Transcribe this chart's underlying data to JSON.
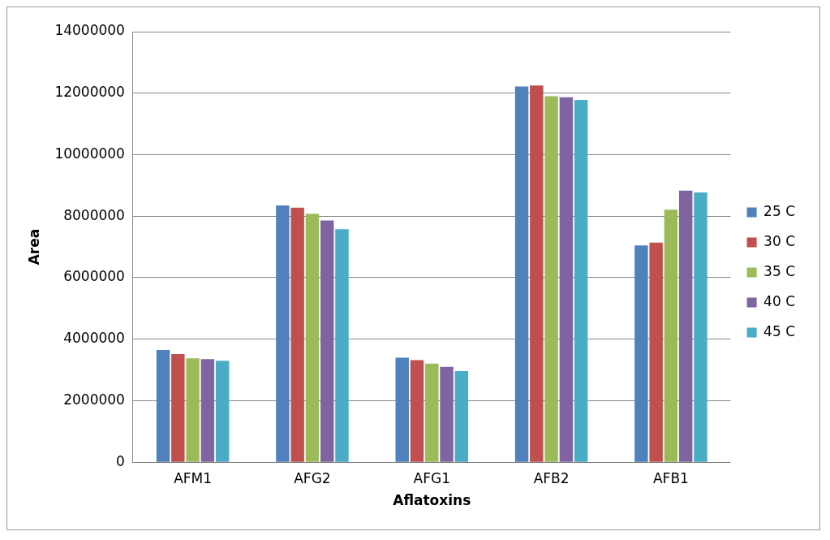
{
  "chart_data": {
    "type": "bar",
    "xlabel": "Aflatoxins",
    "ylabel": "Area",
    "categories": [
      "AFM1",
      "AFG2",
      "AFG1",
      "AFB2",
      "AFB1"
    ],
    "series": [
      {
        "name": "25 C",
        "color": "#4f81bd",
        "values": [
          3650000,
          8350000,
          3400000,
          12220000,
          7050000
        ]
      },
      {
        "name": "30 C",
        "color": "#c0504d",
        "values": [
          3520000,
          8280000,
          3320000,
          12250000,
          7140000
        ]
      },
      {
        "name": "35 C",
        "color": "#9bbb59",
        "values": [
          3380000,
          8080000,
          3210000,
          11900000,
          8210000
        ]
      },
      {
        "name": "40 C",
        "color": "#8064a2",
        "values": [
          3350000,
          7860000,
          3100000,
          11870000,
          8830000
        ]
      },
      {
        "name": "45 C",
        "color": "#4bacc6",
        "values": [
          3300000,
          7580000,
          2960000,
          11780000,
          8770000
        ]
      }
    ],
    "ylim": [
      0,
      14000000
    ],
    "yticks": [
      0,
      2000000,
      4000000,
      6000000,
      8000000,
      10000000,
      12000000,
      14000000
    ],
    "grid": "y",
    "legend": "right"
  }
}
